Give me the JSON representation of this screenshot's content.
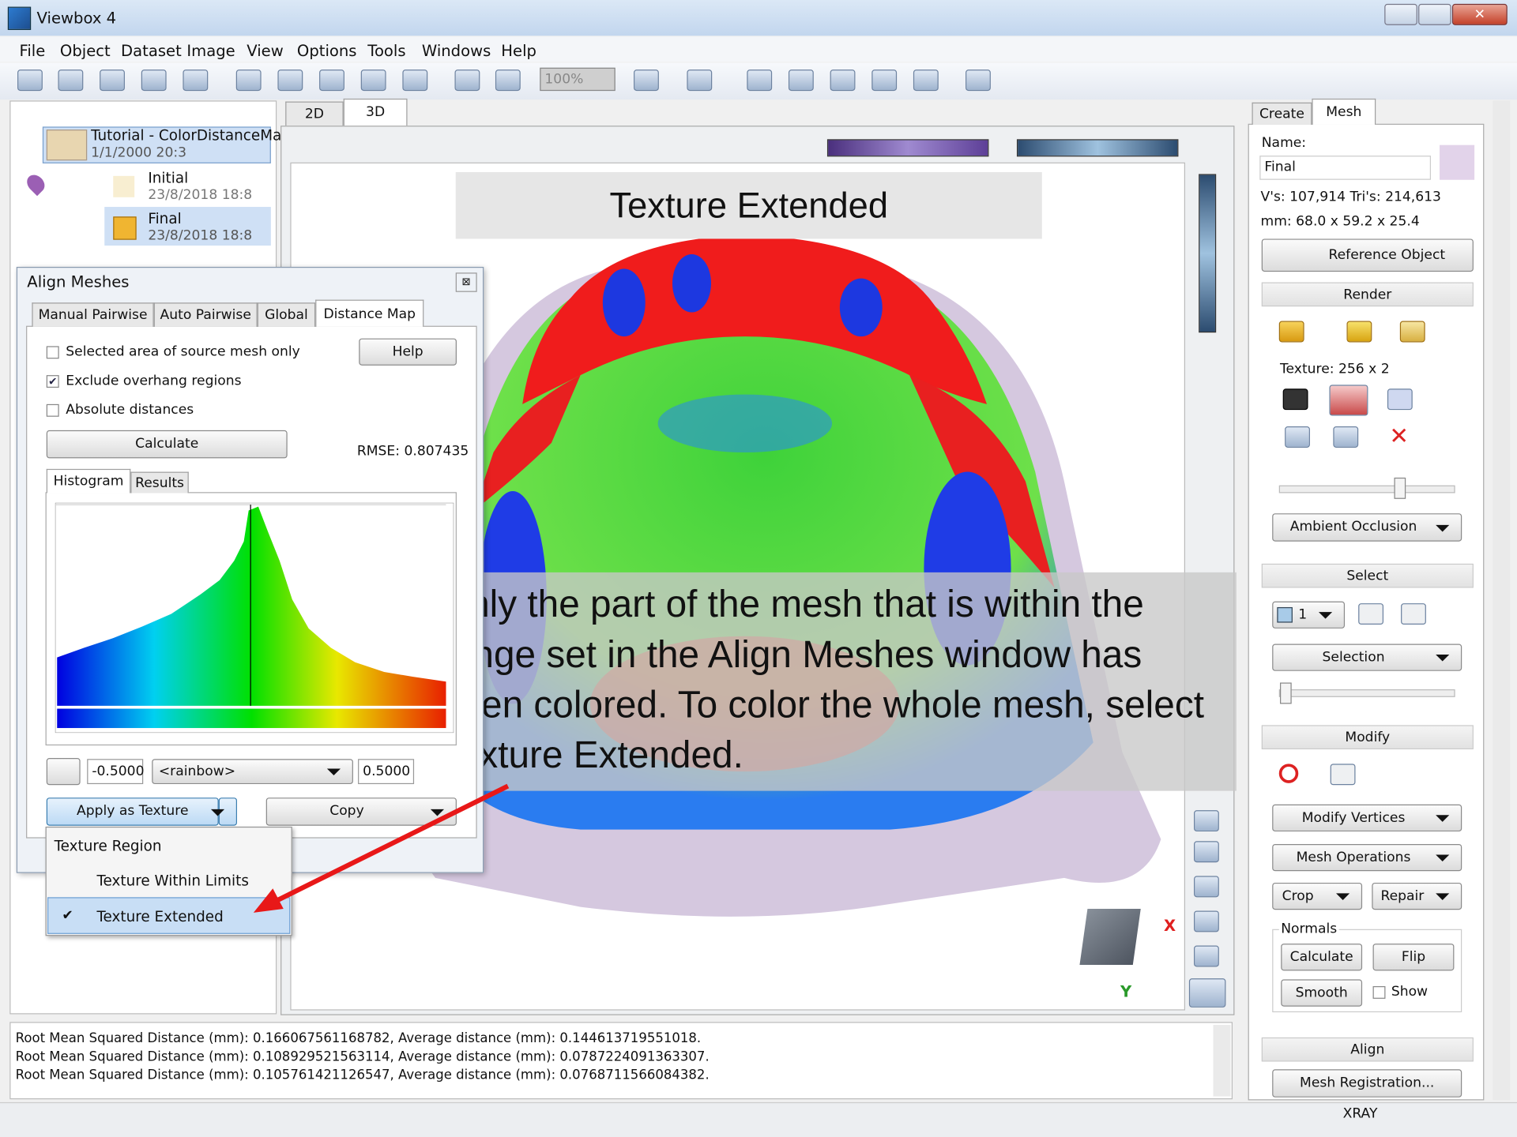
{
  "window": {
    "title": "Viewbox 4"
  },
  "menu": [
    "File",
    "Object",
    "Dataset",
    "Image",
    "View",
    "Options",
    "Tools",
    "Windows",
    "Help"
  ],
  "toolbar": {
    "zoom": "100%"
  },
  "tree": [
    {
      "label": "Tutorial - ColorDistanceMa",
      "date": "1/1/2000  20:3"
    },
    {
      "label": "Initial",
      "date": "23/8/2018  18:8"
    },
    {
      "label": "Final",
      "date": "23/8/2018  18:8"
    }
  ],
  "view_tabs": [
    "2D",
    "3D"
  ],
  "dialog": {
    "title": "Align Meshes",
    "tabs": [
      "Manual Pairwise",
      "Auto Pairwise",
      "Global",
      "Distance Map"
    ],
    "checkboxes": [
      {
        "label": "Selected area of source mesh only",
        "checked": false
      },
      {
        "label": "Exclude overhang regions",
        "checked": true
      },
      {
        "label": "Absolute distances",
        "checked": false
      }
    ],
    "help": "Help",
    "calculate": "Calculate",
    "rmse": "RMSE: 0.807435",
    "subtabs": [
      "Histogram",
      "Results"
    ],
    "min": "-0.5000",
    "colormap": "<rainbow>",
    "max": "0.5000",
    "apply": "Apply as Texture",
    "copy": "Copy"
  },
  "dropdown": {
    "header": "Texture Region",
    "items": [
      {
        "label": "Texture Within Limits",
        "checked": false
      },
      {
        "label": "Texture Extended",
        "checked": true
      }
    ]
  },
  "viewport": {
    "banner": "Texture Extended",
    "callout": [
      "Only the part of the mesh that is within the",
      "range set in the Align Meshes window has",
      "been colored. To color the whole mesh, select",
      "Texture Extended."
    ],
    "axis_x": "X",
    "axis_y": "Y"
  },
  "panel": {
    "tabs": [
      "Create",
      "Mesh"
    ],
    "name_label": "Name:",
    "name_value": "Final",
    "stats": "V's: 107,914  Tri's: 214,613",
    "dims": "mm: 68.0 x 59.2 x 25.4",
    "reference": "Reference Object",
    "render": "Render",
    "texture": "Texture: 256 x 2",
    "ambient": "Ambient Occlusion",
    "select": "Select",
    "select_value": "1",
    "selection": "Selection",
    "modify": "Modify",
    "modify_vertices": "Modify Vertices",
    "mesh_operations": "Mesh Operations",
    "crop": "Crop",
    "repair": "Repair",
    "normals": "Normals",
    "normals_calculate": "Calculate",
    "flip": "Flip",
    "smooth": "Smooth",
    "show": "Show",
    "align": "Align",
    "registration": "Mesh Registration..."
  },
  "log": [
    "Root Mean Squared Distance (mm): 0.166067561168782,  Average distance (mm): 0.144613719551018.",
    "Root Mean Squared Distance (mm): 0.108929521563114,  Average distance (mm): 0.0787224091363307.",
    "Root Mean Squared Distance (mm): 0.105761421126547,  Average distance (mm): 0.0768711566084382."
  ],
  "status": "XRAY"
}
